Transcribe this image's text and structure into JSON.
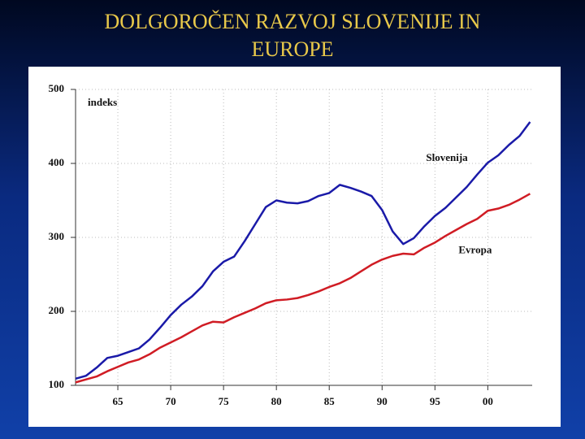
{
  "chart_data": {
    "type": "line",
    "title": "DOLGOROČEN RAZVOJ SLOVENIJE IN EUROPE",
    "y_label": "indeks",
    "x": [
      1961,
      1962,
      1963,
      1964,
      1965,
      1966,
      1967,
      1968,
      1969,
      1970,
      1971,
      1972,
      1973,
      1974,
      1975,
      1976,
      1977,
      1978,
      1979,
      1980,
      1981,
      1982,
      1983,
      1984,
      1985,
      1986,
      1987,
      1988,
      1989,
      1990,
      1991,
      1992,
      1993,
      1994,
      1995,
      1996,
      1997,
      1998,
      1999,
      2000,
      2001,
      2002,
      2003,
      2004
    ],
    "series": [
      {
        "name": "Slovenija",
        "color": "#1a1aa8",
        "values": [
          109,
          113,
          124,
          137,
          140,
          145,
          150,
          162,
          178,
          195,
          209,
          220,
          234,
          254,
          267,
          274,
          295,
          318,
          341,
          350,
          347,
          346,
          349,
          356,
          360,
          371,
          367,
          362,
          356,
          337,
          308,
          291,
          299,
          315,
          329,
          340,
          354,
          368,
          385,
          401,
          411,
          425,
          437,
          456
        ]
      },
      {
        "name": "Evropa",
        "color": "#d01c24",
        "values": [
          104,
          108,
          112,
          119,
          125,
          131,
          135,
          142,
          151,
          158,
          165,
          173,
          181,
          186,
          185,
          192,
          198,
          204,
          211,
          215,
          216,
          218,
          222,
          227,
          233,
          238,
          245,
          254,
          263,
          270,
          275,
          278,
          277,
          286,
          293,
          302,
          310,
          318,
          325,
          336,
          339,
          344,
          351,
          359
        ]
      }
    ],
    "xlim": [
      1961,
      2004.2
    ],
    "xticks": [
      {
        "value": 1965,
        "label": "65"
      },
      {
        "value": 1970,
        "label": "70"
      },
      {
        "value": 1975,
        "label": "75"
      },
      {
        "value": 1980,
        "label": "80"
      },
      {
        "value": 1985,
        "label": "85"
      },
      {
        "value": 1990,
        "label": "90"
      },
      {
        "value": 1995,
        "label": "95"
      },
      {
        "value": 2000,
        "label": "00"
      }
    ],
    "ylim": [
      100,
      500
    ],
    "yticks": [
      100,
      200,
      300,
      400,
      500
    ],
    "grid": true
  }
}
